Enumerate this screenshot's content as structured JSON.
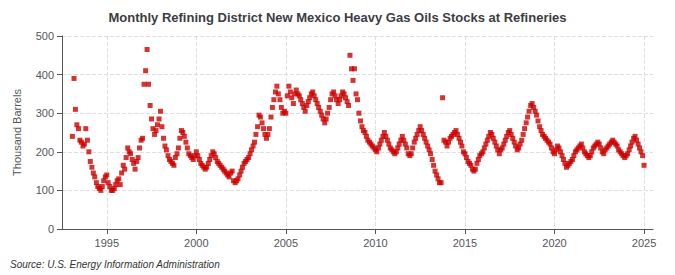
{
  "chart_data": {
    "type": "scatter",
    "title": "Monthly Refining District New Mexico Heavy Gas Oils Stocks at Refineries",
    "y_label": "Thousand Barrels",
    "source": "Source: U.S. Energy Information Administration",
    "xlim": [
      1992.5,
      2025.5
    ],
    "xticks": [
      1995,
      2000,
      2005,
      2010,
      2015,
      2020,
      2025
    ],
    "ylim": [
      0,
      500
    ],
    "yticks": [
      0,
      100,
      200,
      300,
      400,
      500
    ],
    "grid": true,
    "color": "#CC0000",
    "marker": "square",
    "x": [
      1993.08,
      1993.17,
      1993.25,
      1993.33,
      1993.42,
      1993.5,
      1993.58,
      1993.67,
      1993.75,
      1993.83,
      1993.92,
      1994.0,
      1994.08,
      1994.17,
      1994.25,
      1994.33,
      1994.42,
      1994.5,
      1994.58,
      1994.67,
      1994.75,
      1994.83,
      1994.92,
      1995.0,
      1995.08,
      1995.17,
      1995.25,
      1995.33,
      1995.42,
      1995.5,
      1995.58,
      1995.67,
      1995.75,
      1995.83,
      1995.92,
      1996.0,
      1996.08,
      1996.17,
      1996.25,
      1996.33,
      1996.42,
      1996.5,
      1996.58,
      1996.67,
      1996.75,
      1996.83,
      1996.92,
      1997.0,
      1997.08,
      1997.17,
      1997.25,
      1997.33,
      1997.42,
      1997.5,
      1997.58,
      1997.67,
      1997.75,
      1997.83,
      1997.92,
      1998.0,
      1998.08,
      1998.17,
      1998.25,
      1998.33,
      1998.42,
      1998.5,
      1998.58,
      1998.67,
      1998.75,
      1998.83,
      1998.92,
      1999.0,
      1999.08,
      1999.17,
      1999.25,
      1999.33,
      1999.42,
      1999.5,
      1999.58,
      1999.67,
      1999.75,
      1999.83,
      1999.92,
      2000.0,
      2000.08,
      2000.17,
      2000.25,
      2000.33,
      2000.42,
      2000.5,
      2000.58,
      2000.67,
      2000.75,
      2000.83,
      2000.92,
      2001.0,
      2001.08,
      2001.17,
      2001.25,
      2001.33,
      2001.42,
      2001.5,
      2001.58,
      2001.67,
      2001.75,
      2001.83,
      2001.92,
      2002.0,
      2002.08,
      2002.17,
      2002.25,
      2002.33,
      2002.42,
      2002.5,
      2002.58,
      2002.67,
      2002.75,
      2002.83,
      2002.92,
      2003.0,
      2003.08,
      2003.17,
      2003.25,
      2003.33,
      2003.42,
      2003.5,
      2003.58,
      2003.67,
      2003.75,
      2003.83,
      2003.92,
      2004.0,
      2004.08,
      2004.17,
      2004.25,
      2004.33,
      2004.42,
      2004.5,
      2004.58,
      2004.67,
      2004.75,
      2004.83,
      2004.92,
      2005.0,
      2005.08,
      2005.17,
      2005.25,
      2005.33,
      2005.42,
      2005.5,
      2005.58,
      2005.67,
      2005.75,
      2005.83,
      2005.92,
      2006.0,
      2006.08,
      2006.17,
      2006.25,
      2006.33,
      2006.42,
      2006.5,
      2006.58,
      2006.67,
      2006.75,
      2006.83,
      2006.92,
      2007.0,
      2007.08,
      2007.17,
      2007.25,
      2007.33,
      2007.42,
      2007.5,
      2007.58,
      2007.67,
      2007.75,
      2007.83,
      2007.92,
      2008.0,
      2008.08,
      2008.17,
      2008.25,
      2008.33,
      2008.42,
      2008.5,
      2008.58,
      2008.67,
      2008.75,
      2008.83,
      2008.92,
      2009.0,
      2009.08,
      2009.17,
      2009.25,
      2009.33,
      2009.42,
      2009.5,
      2009.58,
      2009.67,
      2009.75,
      2009.83,
      2009.92,
      2010.0,
      2010.08,
      2010.17,
      2010.25,
      2010.33,
      2010.42,
      2010.5,
      2010.58,
      2010.67,
      2010.75,
      2010.83,
      2010.92,
      2011.0,
      2011.08,
      2011.17,
      2011.25,
      2011.33,
      2011.42,
      2011.5,
      2011.58,
      2011.67,
      2011.75,
      2011.83,
      2011.92,
      2012.0,
      2012.08,
      2012.17,
      2012.25,
      2012.33,
      2012.42,
      2012.5,
      2012.58,
      2012.67,
      2012.75,
      2012.83,
      2012.92,
      2013.0,
      2013.08,
      2013.17,
      2013.25,
      2013.33,
      2013.42,
      2013.5,
      2013.58,
      2013.67,
      2013.75,
      2013.83,
      2013.92,
      2014.0,
      2014.08,
      2014.17,
      2014.25,
      2014.33,
      2014.42,
      2014.5,
      2014.58,
      2014.67,
      2014.75,
      2014.83,
      2014.92,
      2015.0,
      2015.08,
      2015.17,
      2015.25,
      2015.33,
      2015.42,
      2015.5,
      2015.58,
      2015.67,
      2015.75,
      2015.83,
      2015.92,
      2016.0,
      2016.08,
      2016.17,
      2016.25,
      2016.33,
      2016.42,
      2016.5,
      2016.58,
      2016.67,
      2016.75,
      2016.83,
      2016.92,
      2017.0,
      2017.08,
      2017.17,
      2017.25,
      2017.33,
      2017.42,
      2017.5,
      2017.58,
      2017.67,
      2017.75,
      2017.83,
      2017.92,
      2018.0,
      2018.08,
      2018.17,
      2018.25,
      2018.33,
      2018.42,
      2018.5,
      2018.58,
      2018.67,
      2018.75,
      2018.83,
      2018.92,
      2019.0,
      2019.08,
      2019.17,
      2019.25,
      2019.33,
      2019.42,
      2019.5,
      2019.58,
      2019.67,
      2019.75,
      2019.83,
      2019.92,
      2020.0,
      2020.08,
      2020.17,
      2020.25,
      2020.33,
      2020.42,
      2020.5,
      2020.58,
      2020.67,
      2020.75,
      2020.83,
      2020.92,
      2021.0,
      2021.08,
      2021.17,
      2021.25,
      2021.33,
      2021.42,
      2021.5,
      2021.58,
      2021.67,
      2021.75,
      2021.83,
      2021.92,
      2022.0,
      2022.08,
      2022.17,
      2022.25,
      2022.33,
      2022.42,
      2022.5,
      2022.58,
      2022.67,
      2022.75,
      2022.83,
      2022.92,
      2023.0,
      2023.08,
      2023.17,
      2023.25,
      2023.33,
      2023.42,
      2023.5,
      2023.58,
      2023.67,
      2023.75,
      2023.83,
      2023.92,
      2024.0,
      2024.08,
      2024.17,
      2024.25,
      2024.33,
      2024.42,
      2024.5,
      2024.58,
      2024.67,
      2024.75,
      2024.83,
      2024.92,
      2025.0
    ],
    "values": [
      240,
      390,
      310,
      270,
      260,
      230,
      225,
      215,
      220,
      260,
      230,
      200,
      175,
      160,
      145,
      135,
      120,
      110,
      105,
      100,
      110,
      125,
      135,
      140,
      120,
      110,
      100,
      100,
      105,
      115,
      125,
      130,
      115,
      145,
      165,
      155,
      185,
      210,
      200,
      195,
      180,
      170,
      155,
      175,
      185,
      210,
      230,
      235,
      375,
      410,
      465,
      375,
      320,
      285,
      260,
      245,
      255,
      270,
      285,
      305,
      265,
      235,
      215,
      205,
      190,
      180,
      175,
      170,
      165,
      185,
      195,
      210,
      235,
      255,
      250,
      240,
      225,
      210,
      195,
      190,
      185,
      180,
      190,
      200,
      190,
      180,
      170,
      165,
      160,
      155,
      160,
      170,
      180,
      190,
      200,
      195,
      185,
      175,
      170,
      165,
      160,
      155,
      150,
      145,
      140,
      135,
      145,
      150,
      125,
      120,
      125,
      130,
      140,
      150,
      160,
      170,
      175,
      180,
      185,
      195,
      205,
      215,
      225,
      245,
      265,
      295,
      290,
      275,
      260,
      245,
      235,
      245,
      260,
      290,
      315,
      335,
      355,
      370,
      350,
      335,
      315,
      300,
      305,
      300,
      345,
      370,
      355,
      340,
      325,
      350,
      360,
      350,
      345,
      335,
      325,
      315,
      305,
      320,
      330,
      340,
      350,
      355,
      345,
      335,
      325,
      315,
      305,
      295,
      285,
      275,
      285,
      300,
      315,
      335,
      350,
      355,
      345,
      335,
      325,
      335,
      345,
      355,
      350,
      340,
      330,
      320,
      450,
      415,
      385,
      415,
      350,
      335,
      300,
      280,
      265,
      255,
      250,
      240,
      230,
      225,
      220,
      215,
      210,
      205,
      200,
      210,
      220,
      230,
      240,
      250,
      240,
      230,
      220,
      210,
      205,
      200,
      195,
      200,
      210,
      220,
      230,
      240,
      230,
      220,
      210,
      195,
      190,
      195,
      210,
      225,
      235,
      245,
      255,
      265,
      255,
      245,
      235,
      225,
      215,
      205,
      195,
      180,
      165,
      150,
      140,
      130,
      120,
      120,
      340,
      230,
      225,
      215,
      225,
      235,
      240,
      245,
      250,
      255,
      245,
      235,
      225,
      215,
      200,
      195,
      185,
      175,
      170,
      165,
      155,
      150,
      155,
      170,
      180,
      190,
      195,
      200,
      210,
      220,
      230,
      240,
      250,
      245,
      235,
      225,
      215,
      205,
      195,
      205,
      210,
      220,
      230,
      240,
      250,
      255,
      245,
      235,
      225,
      215,
      205,
      210,
      220,
      230,
      245,
      260,
      275,
      290,
      305,
      320,
      325,
      315,
      305,
      295,
      280,
      265,
      255,
      245,
      240,
      235,
      230,
      225,
      220,
      210,
      200,
      195,
      205,
      215,
      210,
      200,
      190,
      180,
      170,
      160,
      165,
      170,
      175,
      180,
      190,
      200,
      205,
      210,
      215,
      220,
      210,
      200,
      195,
      190,
      185,
      190,
      200,
      210,
      215,
      220,
      225,
      220,
      210,
      200,
      195,
      205,
      210,
      215,
      220,
      225,
      230,
      225,
      220,
      215,
      205,
      200,
      195,
      190,
      185,
      190,
      195,
      205,
      215,
      225,
      235,
      240,
      230,
      220,
      210,
      200,
      190,
      165
    ]
  }
}
